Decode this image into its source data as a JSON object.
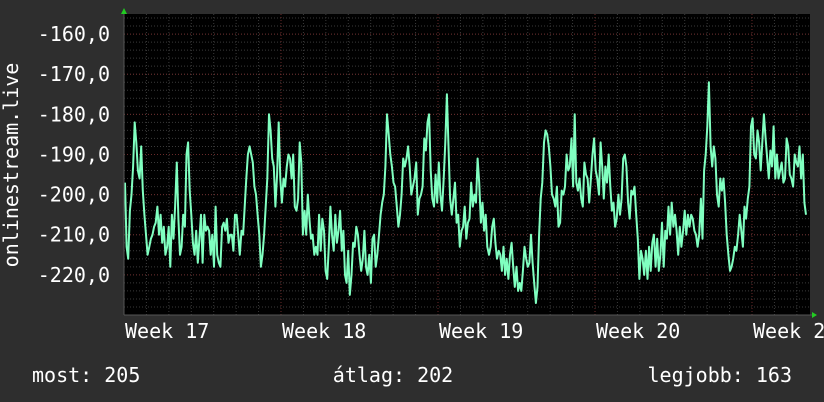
{
  "colors": {
    "background": "#2e2e2e",
    "plot_background": "#000000",
    "grid_minor": "#3a3a3a",
    "grid_major": "#6a2a2a",
    "line": "#80ffc0",
    "text": "#ffffff",
    "axis_arrow": "#22cc22"
  },
  "chart_data": {
    "type": "line",
    "ylabel": "onlinestream.live",
    "yticks": [
      "-160,0",
      "-170,0",
      "-180,0",
      "-190,0",
      "-200,0",
      "-210,0",
      "-220,0"
    ],
    "ylim": [
      -230,
      -155
    ],
    "xticks": [
      "Week 17",
      "Week 18",
      "Week 19",
      "Week 20",
      "Week 2"
    ],
    "grid": true,
    "series": [
      {
        "values": [
          -197,
          -213,
          -216,
          -204,
          -200,
          -193,
          -182,
          -187,
          -194,
          -196,
          -188,
          -199,
          -205,
          -210,
          -215,
          -213,
          -211,
          -210,
          -208,
          -207,
          -203,
          -210,
          -205,
          -212,
          -208,
          -215,
          -213,
          -208,
          -218,
          -205,
          -211,
          -203,
          -192,
          -206,
          -215,
          -213,
          -205,
          -208,
          -190,
          -187,
          -199,
          -205,
          -212,
          -215,
          -209,
          -217,
          -211,
          -205,
          -217,
          -205,
          -209,
          -208,
          -209,
          -215,
          -210,
          -218,
          -203,
          -215,
          -217,
          -218,
          -208,
          -207,
          -209,
          -206,
          -212,
          -210,
          -210,
          -214,
          -205,
          -205,
          -210,
          -215,
          -209,
          -210,
          -203,
          -196,
          -190,
          -188,
          -190,
          -192,
          -198,
          -200,
          -205,
          -210,
          -218,
          -215,
          -210,
          -203,
          -196,
          -180,
          -184,
          -191,
          -193,
          -203,
          -195,
          -182,
          -196,
          -202,
          -196,
          -198,
          -193,
          -190,
          -191,
          -196,
          -190,
          -203,
          -204,
          -201,
          -187,
          -192,
          -210,
          -204,
          -210,
          -200,
          -206,
          -211,
          -210,
          -215,
          -213,
          -215,
          -205,
          -214,
          -206,
          -209,
          -219,
          -221,
          -213,
          -203,
          -210,
          -214,
          -205,
          -212,
          -209,
          -204,
          -214,
          -209,
          -220,
          -222,
          -214,
          -225,
          -220,
          -212,
          -213,
          -208,
          -210,
          -215,
          -219,
          -216,
          -209,
          -218,
          -220,
          -215,
          -222,
          -211,
          -210,
          -218,
          -215,
          -210,
          -205,
          -202,
          -200,
          -193,
          -180,
          -185,
          -190,
          -193,
          -197,
          -198,
          -203,
          -208,
          -205,
          -200,
          -191,
          -193,
          -191,
          -188,
          -193,
          -200,
          -198,
          -196,
          -192,
          -205,
          -201,
          -200,
          -198,
          -186,
          -189,
          -182,
          -180,
          -194,
          -201,
          -203,
          -195,
          -202,
          -192,
          -200,
          -204,
          -196,
          -187,
          -175,
          -188,
          -201,
          -205,
          -201,
          -197,
          -207,
          -205,
          -213,
          -209,
          -208,
          -203,
          -211,
          -207,
          -206,
          -197,
          -203,
          -200,
          -202,
          -191,
          -197,
          -207,
          -202,
          -209,
          -205,
          -213,
          -215,
          -213,
          -208,
          -206,
          -212,
          -216,
          -214,
          -215,
          -219,
          -213,
          -220,
          -216,
          -221,
          -215,
          -212,
          -218,
          -223,
          -218,
          -224,
          -222,
          -224,
          -219,
          -213,
          -216,
          -218,
          -217,
          -210,
          -217,
          -222,
          -227,
          -223,
          -210,
          -201,
          -197,
          -187,
          -184,
          -185,
          -188,
          -193,
          -200,
          -201,
          -203,
          -198,
          -208,
          -207,
          -199,
          -200,
          -198,
          -190,
          -194,
          -193,
          -186,
          -198,
          -180,
          -197,
          -199,
          -196,
          -201,
          -203,
          -192,
          -195,
          -196,
          -202,
          -196,
          -190,
          -186,
          -194,
          -196,
          -200,
          -187,
          -193,
          -201,
          -193,
          -197,
          -190,
          -198,
          -204,
          -202,
          -208,
          -206,
          -200,
          -205,
          -201,
          -191,
          -190,
          -193,
          -202,
          -206,
          -199,
          -200,
          -198,
          -205,
          -211,
          -221,
          -214,
          -216,
          -220,
          -214,
          -221,
          -213,
          -219,
          -212,
          -210,
          -218,
          -211,
          -219,
          -215,
          -207,
          -218,
          -209,
          -211,
          -203,
          -210,
          -202,
          -208,
          -205,
          -209,
          -215,
          -208,
          -213,
          -209,
          -204,
          -210,
          -205,
          -208,
          -205,
          -206,
          -209,
          -210,
          -213,
          -210,
          -201,
          -211,
          -194,
          -190,
          -183,
          -172,
          -188,
          -193,
          -188,
          -191,
          -200,
          -203,
          -196,
          -199,
          -196,
          -202,
          -210,
          -215,
          -219,
          -218,
          -216,
          -213,
          -214,
          -210,
          -205,
          -209,
          -213,
          -203,
          -206,
          -201,
          -198,
          -183,
          -181,
          -190,
          -191,
          -184,
          -187,
          -194,
          -187,
          -180,
          -186,
          -191,
          -196,
          -189,
          -193,
          -183,
          -196,
          -190,
          -196,
          -194,
          -192,
          -197,
          -196,
          -186,
          -188,
          -195,
          -196,
          -198,
          -190,
          -192,
          -193,
          -188,
          -196,
          -190,
          -202,
          -205
        ]
      }
    ]
  },
  "stats": {
    "current": "most: 205",
    "average": "átlag: 202",
    "best": "legjobb: 163"
  }
}
